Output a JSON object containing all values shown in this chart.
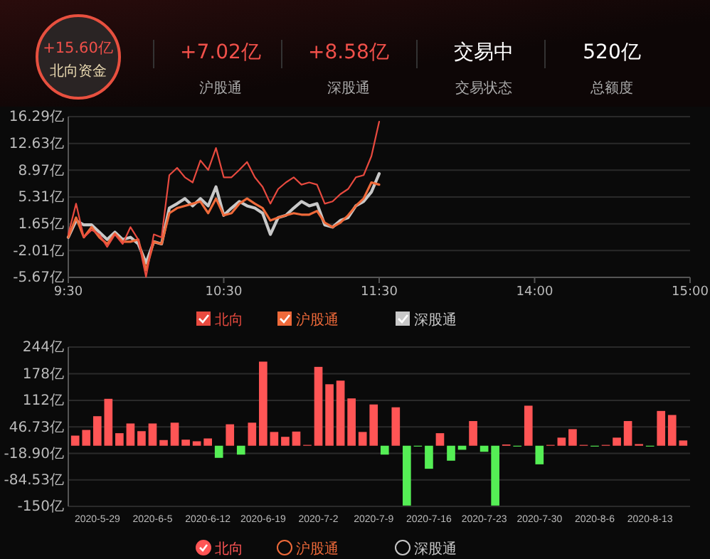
{
  "chart_data": [
    {
      "type": "other",
      "annotations": [
        "+15.60亿",
        "北向资金",
        "+7.02亿",
        "沪股通",
        "+8.58亿",
        "深股通",
        "交易中",
        "交易状态",
        "520亿",
        "总额度"
      ]
    },
    {
      "type": "line",
      "categories": [
        "9:30",
        null,
        null,
        null,
        null,
        null,
        null,
        null,
        null,
        null,
        null,
        null,
        null,
        null,
        null,
        null,
        null,
        null,
        null,
        null,
        "10:30",
        null,
        null,
        null,
        null,
        null,
        null,
        null,
        null,
        null,
        null,
        null,
        null,
        null,
        null,
        null,
        null,
        null,
        null,
        null,
        "11:30",
        null,
        null,
        null,
        null,
        null,
        null,
        null,
        null,
        null,
        null,
        null,
        null,
        null,
        null,
        null,
        null,
        null,
        null,
        null,
        "14:00",
        null,
        null,
        null,
        null,
        null,
        null,
        null,
        null,
        null,
        null,
        null,
        null,
        null,
        null,
        null,
        null,
        null,
        null,
        null,
        "15:00"
      ],
      "ylim": [
        -5.67,
        16.29
      ],
      "yticks": [
        {
          "value": -5.67,
          "label": "-5.67亿"
        },
        {
          "value": -2.01,
          "label": "-2.01亿"
        },
        {
          "value": 1.65,
          "label": "1.65亿"
        },
        {
          "value": 5.31,
          "label": "5.31亿"
        },
        {
          "value": 8.97,
          "label": "8.97亿"
        },
        {
          "value": 12.63,
          "label": "12.63亿"
        },
        {
          "value": 16.29,
          "label": "16.29亿"
        }
      ],
      "grid": "y",
      "legend": "bottom",
      "series": [
        {
          "name": "北向",
          "color": "#e84a3f",
          "values": [
            0.2,
            4.4,
            -0.2,
            0.8,
            0.2,
            -1.5,
            0.2,
            -1.1,
            1.2,
            -0.5,
            -5.6,
            0.2,
            -0.2,
            8.3,
            9.3,
            8.0,
            7.3,
            10.3,
            9.0,
            12.0,
            8.0,
            8.0,
            9.0,
            10.1,
            8.0,
            6.7,
            4.4,
            6.4,
            7.3,
            8.0,
            7.0,
            7.3,
            7.0,
            4.4,
            4.7,
            5.7,
            6.4,
            8.0,
            8.3,
            10.9,
            15.6,
            null,
            null,
            null,
            null,
            null,
            null,
            null,
            null,
            null,
            null,
            null,
            null,
            null,
            null,
            null,
            null,
            null,
            null,
            null,
            null,
            null,
            null,
            null,
            null,
            null,
            null,
            null,
            null,
            null,
            null,
            null,
            null,
            null,
            null,
            null,
            null,
            null,
            null,
            null,
            null
          ]
        },
        {
          "name": "沪股通",
          "color": "#ef6a3a",
          "values": [
            -0.2,
            2.5,
            -0.2,
            1.2,
            -0.2,
            -1.1,
            0.3,
            -0.8,
            -0.8,
            -0.5,
            -4.7,
            -0.8,
            -1.1,
            3.1,
            3.8,
            4.1,
            4.4,
            4.7,
            3.1,
            5.1,
            2.8,
            3.1,
            4.4,
            5.1,
            4.4,
            3.8,
            2.1,
            2.5,
            2.8,
            3.1,
            2.9,
            2.9,
            3.4,
            1.8,
            1.2,
            1.8,
            2.8,
            4.1,
            5.1,
            7.3,
            7.0,
            null,
            null,
            null,
            null,
            null,
            null,
            null,
            null,
            null,
            null,
            null,
            null,
            null,
            null,
            null,
            null,
            null,
            null,
            null,
            null,
            null,
            null,
            null,
            null,
            null,
            null,
            null,
            null,
            null,
            null,
            null,
            null,
            null,
            null,
            null,
            null,
            null,
            null,
            null,
            null
          ]
        },
        {
          "name": "深股通",
          "color": "#c8c8c8",
          "values": [
            -0.2,
            2.1,
            1.5,
            1.5,
            0.5,
            -0.5,
            0.5,
            -0.5,
            -0.2,
            -1.1,
            -3.7,
            -0.8,
            -1.1,
            3.8,
            4.4,
            5.1,
            4.1,
            5.1,
            4.1,
            6.7,
            2.8,
            3.8,
            4.7,
            4.1,
            3.8,
            3.1,
            0.2,
            2.5,
            2.8,
            3.8,
            4.7,
            4.1,
            4.4,
            1.5,
            1.2,
            2.1,
            2.5,
            4.1,
            4.7,
            6.0,
            8.5,
            null,
            null,
            null,
            null,
            null,
            null,
            null,
            null,
            null,
            null,
            null,
            null,
            null,
            null,
            null,
            null,
            null,
            null,
            null,
            null,
            null,
            null,
            null,
            null,
            null,
            null,
            null,
            null,
            null,
            null,
            null,
            null,
            null,
            null,
            null,
            null,
            null,
            null,
            null,
            null
          ]
        }
      ]
    },
    {
      "type": "bar",
      "categories": [
        null,
        null,
        "2020-5-29",
        null,
        null,
        null,
        null,
        "2020-6-5",
        null,
        null,
        null,
        null,
        "2020-6-12",
        null,
        null,
        null,
        null,
        "2020-6-19",
        null,
        null,
        null,
        null,
        "2020-7-2",
        null,
        null,
        null,
        null,
        "2020-7-9",
        null,
        null,
        null,
        null,
        "2020-7-16",
        null,
        null,
        null,
        null,
        "2020-7-23",
        null,
        null,
        null,
        null,
        "2020-7-30",
        null,
        null,
        null,
        null,
        "2020-8-6",
        null,
        null,
        null,
        null,
        "2020-8-13",
        null,
        null,
        null
      ],
      "ylim": [
        -150,
        244
      ],
      "yticks": [
        {
          "value": -150,
          "label": "-150亿"
        },
        {
          "value": -84.53,
          "label": "-84.53亿"
        },
        {
          "value": -18.9,
          "label": "-18.90亿"
        },
        {
          "value": 46.73,
          "label": "46.73亿"
        },
        {
          "value": 112,
          "label": "112亿"
        },
        {
          "value": 178,
          "label": "178亿"
        },
        {
          "value": 244,
          "label": "244亿"
        }
      ],
      "grid": "y",
      "legend": "bottom",
      "series": [
        {
          "name": "北向",
          "color": "#ff5555",
          "values": [
            25,
            39,
            73,
            116,
            31,
            55,
            36,
            55,
            14,
            57,
            15,
            11,
            18,
            -30,
            53,
            -22,
            57,
            208,
            34,
            22,
            35,
            2,
            195,
            152,
            161,
            117,
            34,
            102,
            -22,
            95,
            -148,
            -2,
            -57,
            31,
            -37,
            -10,
            61,
            -15,
            -148,
            3,
            -2,
            99,
            -46,
            2,
            20,
            41,
            2,
            -2,
            2,
            20,
            61,
            4,
            -2,
            86,
            76,
            13
          ],
          "colors": [
            "#ff5555",
            "#ff5555",
            "#ff5555",
            "#ff5555",
            "#ff5555",
            "#ff5555",
            "#ff5555",
            "#ff5555",
            "#ff5555",
            "#ff5555",
            "#ff5555",
            "#ff5555",
            "#ff5555",
            "#55ee55",
            "#ff5555",
            "#55ee55",
            "#ff5555",
            "#ff5555",
            "#ff5555",
            "#ff5555",
            "#ff5555",
            "#ff5555",
            "#ff5555",
            "#ff5555",
            "#ff5555",
            "#ff5555",
            "#ff5555",
            "#ff5555",
            "#55ee55",
            "#ff5555",
            "#55ee55",
            "#55ee55",
            "#55ee55",
            "#ff5555",
            "#55ee55",
            "#55ee55",
            "#ff5555",
            "#55ee55",
            "#55ee55",
            "#ff5555",
            "#55ee55",
            "#ff5555",
            "#55ee55",
            "#ff5555",
            "#ff5555",
            "#ff5555",
            "#ff5555",
            "#55ee55",
            "#ff5555",
            "#ff5555",
            "#ff5555",
            "#ff5555",
            "#55ee55",
            "#ff5555",
            "#ff5555",
            "#ff5555"
          ]
        },
        {
          "name": "沪股通",
          "color": "#ef6a3a",
          "values": [
            null,
            null,
            null,
            null,
            null,
            null,
            null,
            null,
            null,
            null,
            null,
            null,
            null,
            null,
            null,
            null,
            null,
            null,
            null,
            null,
            null,
            null,
            null,
            null,
            null,
            null,
            null,
            null,
            null,
            null,
            null,
            null,
            null,
            null,
            null,
            null,
            null,
            null,
            null,
            null,
            null,
            null,
            null,
            null,
            null,
            null,
            null,
            null,
            null,
            null,
            null,
            null,
            null,
            null,
            null,
            null
          ]
        },
        {
          "name": "深股通",
          "color": "#c8c8c8",
          "values": [
            null,
            null,
            null,
            null,
            null,
            null,
            null,
            null,
            null,
            null,
            null,
            null,
            null,
            null,
            null,
            null,
            null,
            null,
            null,
            null,
            null,
            null,
            null,
            null,
            null,
            null,
            null,
            null,
            null,
            null,
            null,
            null,
            null,
            null,
            null,
            null,
            null,
            null,
            null,
            null,
            null,
            null,
            null,
            null,
            null,
            null,
            null,
            null,
            null,
            null,
            null,
            null,
            null,
            null,
            null,
            null
          ]
        }
      ]
    }
  ]
}
